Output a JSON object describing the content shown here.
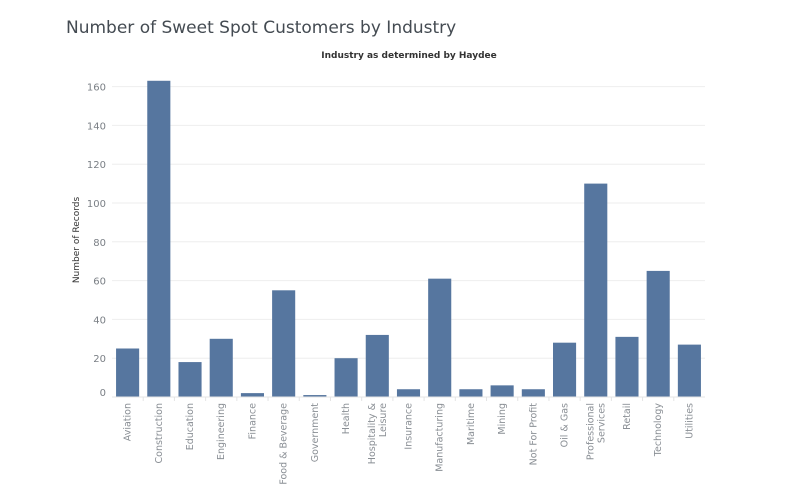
{
  "chart_data": {
    "type": "bar",
    "title": "Number of Sweet Spot Customers by Industry",
    "subtitle": "Industry as determined by Haydee",
    "xlabel": "",
    "ylabel": "Number of Records",
    "ylim": [
      0,
      170
    ],
    "yticks": [
      0,
      20,
      40,
      60,
      80,
      100,
      120,
      140,
      160
    ],
    "grid": true,
    "bar_color": "#56769f",
    "categories": [
      [
        "Aviation"
      ],
      [
        "Construction"
      ],
      [
        "Education"
      ],
      [
        "Engineering"
      ],
      [
        "Finance"
      ],
      [
        "Food & Beverage"
      ],
      [
        "Government"
      ],
      [
        "Health"
      ],
      [
        "Hospitality &",
        "Leisure"
      ],
      [
        "Insurance"
      ],
      [
        "Manufacturing"
      ],
      [
        "Maritime"
      ],
      [
        "Mining"
      ],
      [
        "Not For Profit"
      ],
      [
        "Oil & Gas"
      ],
      [
        "Professional",
        "Services"
      ],
      [
        "Retail"
      ],
      [
        "Technology"
      ],
      [
        "Utilities"
      ]
    ],
    "values": [
      25,
      163,
      18,
      30,
      2,
      55,
      1,
      20,
      32,
      4,
      61,
      4,
      6,
      4,
      28,
      110,
      31,
      65,
      27
    ]
  }
}
